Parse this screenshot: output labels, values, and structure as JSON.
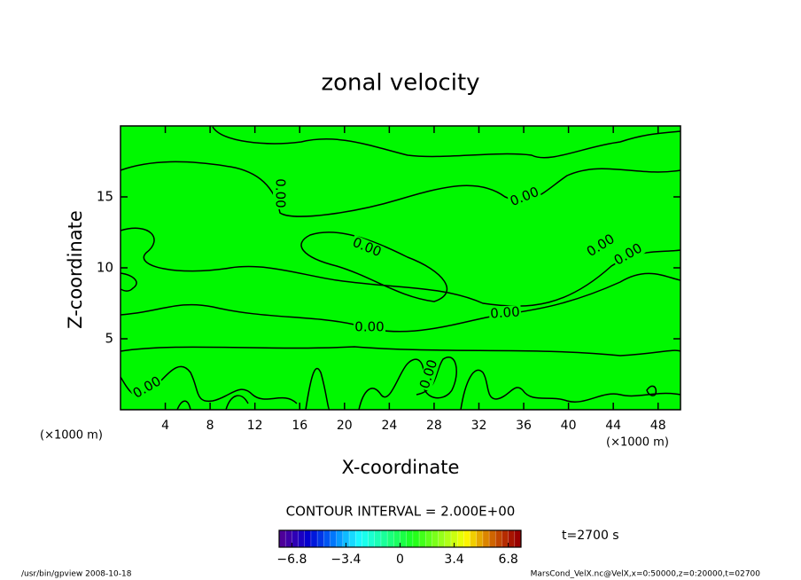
{
  "chart_data": {
    "type": "contour",
    "title": "zonal velocity",
    "xlabel": "X-coordinate",
    "ylabel": "Z-coordinate",
    "x_unit": "(×1000 m)",
    "y_unit": "(×1000 m)",
    "xlim": [
      0,
      50
    ],
    "ylim": [
      0,
      20
    ],
    "xticks": [
      4,
      8,
      12,
      16,
      20,
      24,
      28,
      32,
      36,
      40,
      44,
      48
    ],
    "yticks": [
      5,
      10,
      15
    ],
    "fill_color": "#00f800",
    "contour_level": {
      "value": 0,
      "label": "0.00"
    },
    "contour_interval": "CONTOUR INTERVAL = 2.000E+00",
    "colorbar": {
      "lim": [
        -7.6,
        7.6
      ],
      "ticks": [
        {
          "value": -6.8,
          "label": "−6.8"
        },
        {
          "value": -3.4,
          "label": "−3.4"
        },
        0,
        3.4,
        6.8
      ]
    },
    "time_label": "t=2700 s",
    "footer_left": "/usr/bin/gpview   2008-10-18",
    "footer_right": "MarsCond_VelX.nc@VelX,x=0:50000,z=0:20000,t=02700"
  }
}
